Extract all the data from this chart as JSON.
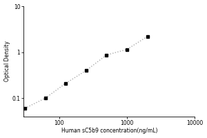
{
  "x_data": [
    31.25,
    62.5,
    125,
    250,
    500,
    1000,
    2000
  ],
  "y_data": [
    0.06,
    0.1,
    0.21,
    0.4,
    0.87,
    1.15,
    2.2
  ],
  "xlabel": "Human sC5b9 concentration(ng/mL)",
  "ylabel": "Optical Density",
  "xlim": [
    30,
    10000
  ],
  "ylim": [
    0.04,
    10
  ],
  "xticks": [
    100,
    1000,
    10000
  ],
  "yticks": [
    0.1,
    1,
    10
  ],
  "marker": "s",
  "marker_color": "black",
  "marker_size": 3.5,
  "line_style": ":",
  "line_color": "#aaaaaa",
  "line_width": 1.0,
  "background_color": "#ffffff",
  "xlabel_fontsize": 5.5,
  "ylabel_fontsize": 5.5,
  "tick_labelsize": 5.5
}
